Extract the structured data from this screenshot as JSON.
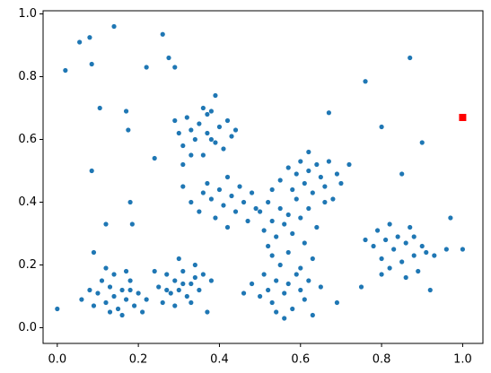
{
  "chart_data": {
    "type": "scatter",
    "xlim": [
      -0.035,
      1.05
    ],
    "ylim": [
      -0.05,
      1.01
    ],
    "xticks": [
      {
        "value": 0,
        "label": "0.0"
      },
      0.2,
      0.4,
      0.6,
      0.8,
      {
        "value": 1,
        "label": "1.0"
      }
    ],
    "yticks": [
      {
        "value": 0,
        "label": "0.0"
      },
      0.2,
      0.4,
      0.6,
      0.8,
      {
        "value": 1,
        "label": "1.0"
      }
    ],
    "grid": false,
    "series": [
      {
        "color": "#1f77b4",
        "marker": "circle",
        "x": [
          0.1,
          0.12,
          0.13,
          0.14,
          0.15,
          0.16,
          0.17,
          0.18,
          0.19,
          0.2,
          0.11,
          0.14,
          0.16,
          0.21,
          0.08,
          0.09,
          0.13,
          0.17,
          0.22,
          0.12,
          0.06,
          0.18,
          0.25,
          0.27,
          0.28,
          0.29,
          0.3,
          0.31,
          0.32,
          0.33,
          0.34,
          0.35,
          0.26,
          0.3,
          0.36,
          0.29,
          0.33,
          0.38,
          0.24,
          0.31,
          0.27,
          0.34,
          0.48,
          0.5,
          0.51,
          0.52,
          0.53,
          0.54,
          0.55,
          0.56,
          0.57,
          0.58,
          0.59,
          0.6,
          0.61,
          0.62,
          0.53,
          0.56,
          0.63,
          0.46,
          0.54,
          0.6,
          0.65,
          0.29,
          0.3,
          0.31,
          0.32,
          0.33,
          0.34,
          0.35,
          0.36,
          0.37,
          0.38,
          0.39,
          0.4,
          0.41,
          0.42,
          0.43,
          0.33,
          0.36,
          0.44,
          0.31,
          0.38,
          0.33,
          0.35,
          0.36,
          0.38,
          0.39,
          0.4,
          0.41,
          0.42,
          0.43,
          0.44,
          0.45,
          0.46,
          0.47,
          0.48,
          0.37,
          0.31,
          0.42,
          0.49,
          0.5,
          0.51,
          0.52,
          0.53,
          0.54,
          0.55,
          0.56,
          0.57,
          0.58,
          0.59,
          0.6,
          0.61,
          0.62,
          0.64,
          0.66,
          0.52,
          0.57,
          0.63,
          0.55,
          0.57,
          0.58,
          0.59,
          0.6,
          0.61,
          0.62,
          0.63,
          0.64,
          0.65,
          0.66,
          0.67,
          0.69,
          0.7,
          0.72,
          0.53,
          0.62,
          0.68,
          0.78,
          0.79,
          0.8,
          0.81,
          0.82,
          0.83,
          0.84,
          0.85,
          0.86,
          0.87,
          0.88,
          0.89,
          0.9,
          0.91,
          0.93,
          0.76,
          0.82,
          0.86,
          0.88,
          0.8,
          0.0,
          0.02,
          0.055,
          0.08,
          0.085,
          0.14,
          0.26,
          0.275,
          0.22,
          0.29,
          0.105,
          0.085,
          0.17,
          0.175,
          0.12,
          0.18,
          0.185,
          0.09,
          0.76,
          0.87,
          0.8,
          0.9,
          0.85,
          0.67,
          0.24,
          0.97,
          1.0,
          0.96,
          0.92,
          0.75,
          0.69,
          0.37,
          0.37,
          0.39
        ],
        "y": [
          0.11,
          0.08,
          0.13,
          0.1,
          0.06,
          0.12,
          0.09,
          0.15,
          0.07,
          0.11,
          0.15,
          0.17,
          0.04,
          0.05,
          0.12,
          0.07,
          0.05,
          0.18,
          0.09,
          0.19,
          0.09,
          0.12,
          0.13,
          0.17,
          0.11,
          0.15,
          0.12,
          0.18,
          0.1,
          0.14,
          0.2,
          0.12,
          0.08,
          0.22,
          0.17,
          0.07,
          0.08,
          0.15,
          0.18,
          0.14,
          0.12,
          0.16,
          0.14,
          0.1,
          0.17,
          0.12,
          0.08,
          0.15,
          0.2,
          0.11,
          0.14,
          0.06,
          0.17,
          0.12,
          0.09,
          0.15,
          0.23,
          0.03,
          0.04,
          0.11,
          0.05,
          0.19,
          0.13,
          0.66,
          0.62,
          0.58,
          0.67,
          0.63,
          0.6,
          0.65,
          0.55,
          0.62,
          0.69,
          0.59,
          0.64,
          0.57,
          0.66,
          0.61,
          0.55,
          0.7,
          0.63,
          0.52,
          0.6,
          0.4,
          0.37,
          0.43,
          0.41,
          0.35,
          0.44,
          0.39,
          0.32,
          0.42,
          0.37,
          0.45,
          0.4,
          0.34,
          0.43,
          0.46,
          0.45,
          0.48,
          0.38,
          0.37,
          0.31,
          0.4,
          0.34,
          0.29,
          0.38,
          0.33,
          0.36,
          0.3,
          0.41,
          0.35,
          0.27,
          0.38,
          0.32,
          0.4,
          0.26,
          0.24,
          0.22,
          0.47,
          0.51,
          0.44,
          0.49,
          0.53,
          0.46,
          0.5,
          0.43,
          0.52,
          0.48,
          0.45,
          0.53,
          0.49,
          0.46,
          0.52,
          0.44,
          0.56,
          0.41,
          0.26,
          0.31,
          0.22,
          0.28,
          0.19,
          0.25,
          0.29,
          0.21,
          0.27,
          0.32,
          0.23,
          0.18,
          0.26,
          0.24,
          0.23,
          0.28,
          0.33,
          0.16,
          0.29,
          0.17,
          0.06,
          0.82,
          0.91,
          0.925,
          0.84,
          0.96,
          0.935,
          0.86,
          0.83,
          0.83,
          0.7,
          0.5,
          0.69,
          0.63,
          0.33,
          0.4,
          0.33,
          0.24,
          0.785,
          0.86,
          0.64,
          0.59,
          0.49,
          0.685,
          0.54,
          0.35,
          0.25,
          0.25,
          0.12,
          0.13,
          0.08,
          0.05,
          0.68,
          0.74
        ]
      },
      {
        "color": "#ff0000",
        "marker": "square",
        "x": [
          1.0
        ],
        "y": [
          0.67
        ]
      }
    ]
  }
}
